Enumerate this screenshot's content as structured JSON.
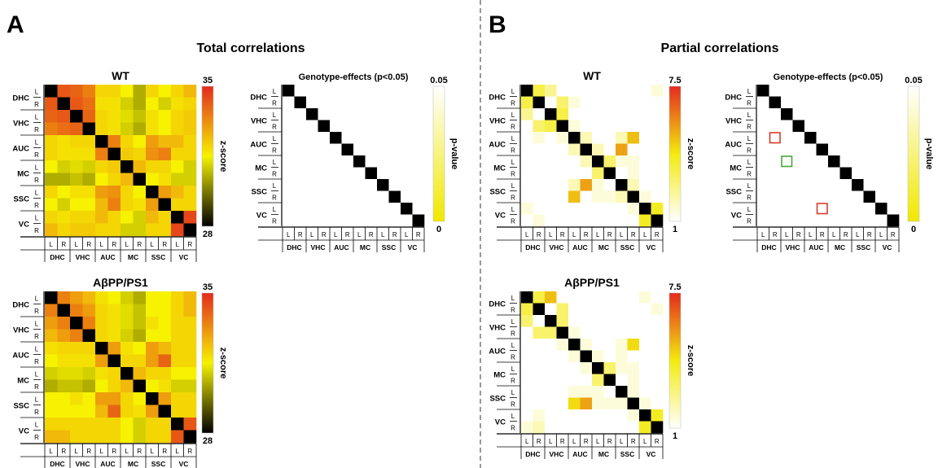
{
  "panel_a": {
    "letter": "A",
    "title": "Total correlations"
  },
  "panel_b": {
    "letter": "B",
    "title": "Partial correlations"
  },
  "regions": [
    "DHC",
    "VHC",
    "AUC",
    "MC",
    "SSC",
    "VC"
  ],
  "hemispheres": [
    "L",
    "R"
  ],
  "colors": {
    "total_scale": [
      "#000000",
      "#f6f200",
      "#e32b1e"
    ],
    "partial_scale": [
      "#ffffff",
      "#f3ea10",
      "#e32b1e"
    ],
    "pvalue_scale": [
      "#f0e800",
      "#ffffff"
    ],
    "diagonal": "#000000",
    "highlight_red": "#d83a2a",
    "highlight_green": "#46a83a"
  },
  "chart_data": [
    {
      "type": "heatmap",
      "id": "total_wt",
      "title": "WT",
      "colorbar_label": "z-score",
      "colorbar_ticks": [
        "35",
        "28"
      ],
      "vmin": 28,
      "vmax": 35,
      "diagonal": "black",
      "values": [
        [
          null,
          34.2,
          34.0,
          33.5,
          32.0,
          32.0,
          31.5,
          30.5,
          32.0,
          31.5,
          32.0,
          32.5
        ],
        [
          34.2,
          null,
          34.2,
          33.8,
          31.8,
          31.8,
          31.0,
          30.5,
          31.5,
          31.0,
          31.8,
          32.0
        ],
        [
          34.0,
          34.2,
          null,
          34.0,
          32.0,
          31.8,
          31.2,
          30.8,
          31.8,
          31.5,
          32.0,
          32.2
        ],
        [
          33.5,
          33.8,
          34.0,
          null,
          32.0,
          31.8,
          31.0,
          30.5,
          31.8,
          31.5,
          32.0,
          32.2
        ],
        [
          32.0,
          31.8,
          32.0,
          32.0,
          null,
          33.5,
          32.0,
          31.5,
          33.0,
          32.5,
          32.5,
          32.0
        ],
        [
          32.0,
          31.8,
          31.8,
          31.8,
          33.5,
          null,
          32.2,
          32.0,
          33.2,
          33.5,
          32.0,
          32.0
        ],
        [
          31.5,
          31.0,
          31.2,
          31.0,
          32.0,
          32.2,
          null,
          32.5,
          32.0,
          32.0,
          31.5,
          31.0
        ],
        [
          30.5,
          30.5,
          30.8,
          30.5,
          31.5,
          32.0,
          32.5,
          null,
          31.5,
          31.8,
          31.0,
          31.0
        ],
        [
          32.0,
          31.5,
          31.8,
          31.8,
          33.0,
          33.2,
          32.0,
          31.5,
          null,
          33.0,
          32.5,
          32.0
        ],
        [
          31.5,
          31.0,
          31.5,
          31.5,
          32.5,
          33.5,
          32.0,
          31.8,
          33.0,
          null,
          32.0,
          32.0
        ],
        [
          32.0,
          31.8,
          32.0,
          32.0,
          32.5,
          32.0,
          31.5,
          31.0,
          32.5,
          32.0,
          null,
          34.5
        ],
        [
          32.5,
          32.0,
          32.2,
          32.2,
          32.0,
          32.0,
          31.0,
          31.0,
          32.0,
          32.0,
          34.5,
          null
        ]
      ]
    },
    {
      "type": "heatmap",
      "id": "total_app",
      "title": "AβPP/PS1",
      "colorbar_label": "z-score",
      "colorbar_ticks": [
        "35",
        "28"
      ],
      "vmin": 28,
      "vmax": 35,
      "diagonal": "black",
      "values": [
        [
          null,
          33.5,
          33.0,
          32.5,
          31.8,
          31.5,
          31.0,
          30.5,
          31.5,
          31.5,
          32.0,
          32.5
        ],
        [
          33.5,
          null,
          33.5,
          33.0,
          32.0,
          31.8,
          31.2,
          30.8,
          31.5,
          31.5,
          32.0,
          32.5
        ],
        [
          33.0,
          33.5,
          null,
          33.5,
          32.0,
          31.8,
          31.2,
          30.8,
          31.8,
          31.5,
          32.0,
          32.0
        ],
        [
          32.5,
          33.0,
          33.5,
          null,
          32.0,
          31.8,
          31.0,
          30.5,
          31.5,
          31.5,
          32.0,
          32.0
        ],
        [
          31.8,
          32.0,
          32.0,
          32.0,
          null,
          33.0,
          31.8,
          31.5,
          33.0,
          32.5,
          32.0,
          32.0
        ],
        [
          31.5,
          31.8,
          31.8,
          31.8,
          33.0,
          null,
          32.0,
          32.0,
          33.0,
          34.0,
          32.0,
          32.0
        ],
        [
          31.0,
          31.2,
          31.2,
          31.0,
          31.8,
          32.0,
          null,
          32.5,
          32.0,
          32.0,
          31.5,
          31.5
        ],
        [
          30.5,
          30.8,
          30.8,
          30.5,
          31.5,
          32.0,
          32.5,
          null,
          31.5,
          31.8,
          31.0,
          31.0
        ],
        [
          31.5,
          31.5,
          31.8,
          31.5,
          33.0,
          33.0,
          32.0,
          31.5,
          null,
          33.0,
          32.0,
          32.0
        ],
        [
          31.5,
          31.5,
          31.5,
          31.5,
          32.5,
          34.0,
          32.0,
          31.8,
          33.0,
          null,
          32.0,
          32.0
        ],
        [
          32.0,
          32.0,
          32.0,
          32.0,
          32.0,
          32.0,
          31.5,
          31.0,
          32.0,
          32.0,
          null,
          34.2
        ],
        [
          32.5,
          32.5,
          32.0,
          32.0,
          32.0,
          32.0,
          31.5,
          31.0,
          32.0,
          32.0,
          34.2,
          null
        ]
      ]
    },
    {
      "type": "heatmap",
      "id": "total_genotype",
      "title": "Genotype-effects (p<0.05)",
      "colorbar_label": "p-value",
      "colorbar_ticks": [
        "0.05",
        "0"
      ],
      "lower_triangle_only": true,
      "significant_cells": []
    },
    {
      "type": "heatmap",
      "id": "partial_wt",
      "title": "WT",
      "colorbar_label": "z-score",
      "colorbar_ticks": [
        "7.5",
        "1"
      ],
      "vmin": 1,
      "vmax": 7.5,
      "diagonal": "black",
      "values": [
        [
          null,
          3.5,
          2.5,
          1.0,
          1.0,
          1.0,
          1.0,
          1.0,
          1.0,
          1.0,
          1.0,
          1.5
        ],
        [
          3.5,
          null,
          1.0,
          3.0,
          1.5,
          1.0,
          1.0,
          1.0,
          1.0,
          1.0,
          1.0,
          1.0
        ],
        [
          2.5,
          1.0,
          null,
          3.5,
          1.0,
          1.0,
          1.0,
          1.0,
          1.0,
          1.0,
          1.0,
          1.0
        ],
        [
          1.0,
          3.0,
          3.5,
          null,
          1.5,
          1.0,
          1.0,
          1.0,
          1.0,
          1.0,
          1.0,
          1.0
        ],
        [
          1.0,
          1.5,
          1.0,
          1.5,
          null,
          2.0,
          1.0,
          1.0,
          2.0,
          5.0,
          1.0,
          1.0
        ],
        [
          1.0,
          1.0,
          1.0,
          1.0,
          2.0,
          null,
          2.0,
          1.0,
          5.5,
          1.0,
          1.0,
          1.0
        ],
        [
          1.0,
          1.0,
          1.0,
          1.0,
          1.0,
          2.0,
          null,
          3.0,
          1.5,
          1.5,
          1.0,
          1.0
        ],
        [
          1.0,
          1.0,
          1.0,
          1.0,
          1.0,
          1.0,
          3.0,
          null,
          1.0,
          1.5,
          1.0,
          1.0
        ],
        [
          1.0,
          1.0,
          1.0,
          1.0,
          2.0,
          5.5,
          1.5,
          1.0,
          null,
          2.0,
          1.0,
          1.0
        ],
        [
          1.0,
          1.0,
          1.0,
          1.0,
          5.0,
          1.0,
          1.5,
          1.5,
          2.0,
          null,
          1.5,
          1.0
        ],
        [
          1.5,
          1.0,
          1.0,
          1.0,
          1.0,
          1.0,
          1.0,
          1.0,
          1.0,
          1.5,
          null,
          4.0
        ],
        [
          1.0,
          1.5,
          1.0,
          1.0,
          1.0,
          1.0,
          1.0,
          1.0,
          1.0,
          1.0,
          4.0,
          null
        ]
      ]
    },
    {
      "type": "heatmap",
      "id": "partial_app",
      "title": "AβPP/PS1",
      "colorbar_label": "z-score",
      "colorbar_ticks": [
        "7.5",
        "1"
      ],
      "vmin": 1,
      "vmax": 7.5,
      "diagonal": "black",
      "values": [
        [
          null,
          3.5,
          5.0,
          1.0,
          1.0,
          1.0,
          1.0,
          1.0,
          1.0,
          1.0,
          1.5,
          1.0
        ],
        [
          3.5,
          null,
          1.0,
          3.0,
          1.0,
          1.0,
          1.0,
          1.0,
          1.0,
          1.0,
          1.0,
          1.5
        ],
        [
          3.0,
          1.0,
          null,
          3.0,
          1.0,
          1.0,
          1.0,
          1.0,
          1.0,
          1.0,
          1.0,
          1.0
        ],
        [
          1.0,
          3.0,
          3.0,
          null,
          1.5,
          1.0,
          1.0,
          1.0,
          1.0,
          1.0,
          1.0,
          1.0
        ],
        [
          1.0,
          1.0,
          1.0,
          1.5,
          null,
          1.5,
          1.0,
          1.0,
          1.5,
          4.5,
          1.0,
          1.0
        ],
        [
          1.0,
          1.0,
          1.0,
          1.0,
          1.5,
          null,
          1.5,
          1.0,
          1.5,
          1.0,
          1.0,
          1.0
        ],
        [
          1.0,
          1.0,
          1.0,
          1.0,
          1.0,
          1.5,
          null,
          3.0,
          1.5,
          1.5,
          1.0,
          1.0
        ],
        [
          1.0,
          1.0,
          1.0,
          1.0,
          1.0,
          1.0,
          3.0,
          null,
          1.0,
          1.5,
          1.0,
          1.0
        ],
        [
          1.0,
          1.0,
          1.0,
          1.0,
          1.5,
          1.5,
          1.5,
          1.0,
          null,
          1.5,
          1.0,
          1.0
        ],
        [
          1.0,
          1.0,
          1.0,
          1.0,
          4.5,
          5.5,
          1.5,
          1.5,
          1.5,
          null,
          1.5,
          1.0
        ],
        [
          1.0,
          1.5,
          1.0,
          1.0,
          1.0,
          1.0,
          1.0,
          1.0,
          1.0,
          1.5,
          null,
          4.0
        ],
        [
          1.5,
          2.0,
          1.0,
          1.0,
          1.0,
          1.0,
          1.0,
          1.0,
          1.0,
          1.0,
          4.0,
          null
        ]
      ]
    },
    {
      "type": "heatmap",
      "id": "partial_genotype",
      "title": "Genotype-effects (p<0.05)",
      "colorbar_label": "p-value",
      "colorbar_ticks": [
        "0.05",
        "0"
      ],
      "lower_triangle_only": true,
      "significant_cells": [
        {
          "row": 4,
          "col": 1,
          "outline": "red"
        },
        {
          "row": 6,
          "col": 2,
          "outline": "green"
        },
        {
          "row": 10,
          "col": 5,
          "outline": "red"
        }
      ]
    }
  ]
}
